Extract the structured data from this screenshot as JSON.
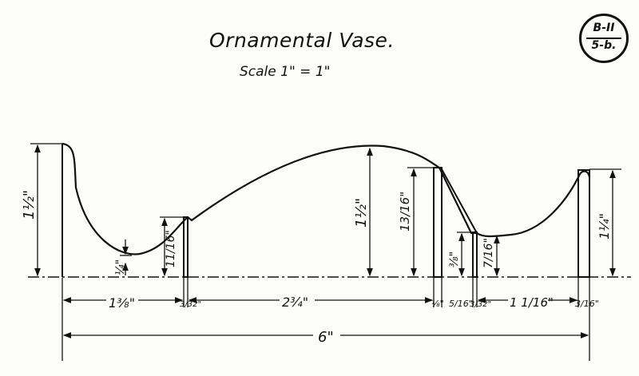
{
  "drawing": {
    "title": "Ornamental Vase.",
    "scale": "Scale 1\" = 1\"",
    "sheet_id": {
      "top": "B-II",
      "bottom": "5-b."
    },
    "profile_heights": [
      {
        "label": "1½\""
      },
      {
        "label": "¼\""
      },
      {
        "label": "11/16\""
      },
      {
        "label": "1½\""
      },
      {
        "label": "13/16\""
      },
      {
        "label": "⅜\""
      },
      {
        "label": "7/16\""
      },
      {
        "label": "1¼\""
      }
    ],
    "horizontal_dims": [
      {
        "label": "1⅜\""
      },
      {
        "label": "3/32\""
      },
      {
        "label": "2¾\""
      },
      {
        "label": "⅛\""
      },
      {
        "label": "5/16\""
      },
      {
        "label": "3/32\""
      },
      {
        "label": "1 1/16\""
      },
      {
        "label": "3/16\""
      }
    ],
    "overall_width": "6\""
  }
}
